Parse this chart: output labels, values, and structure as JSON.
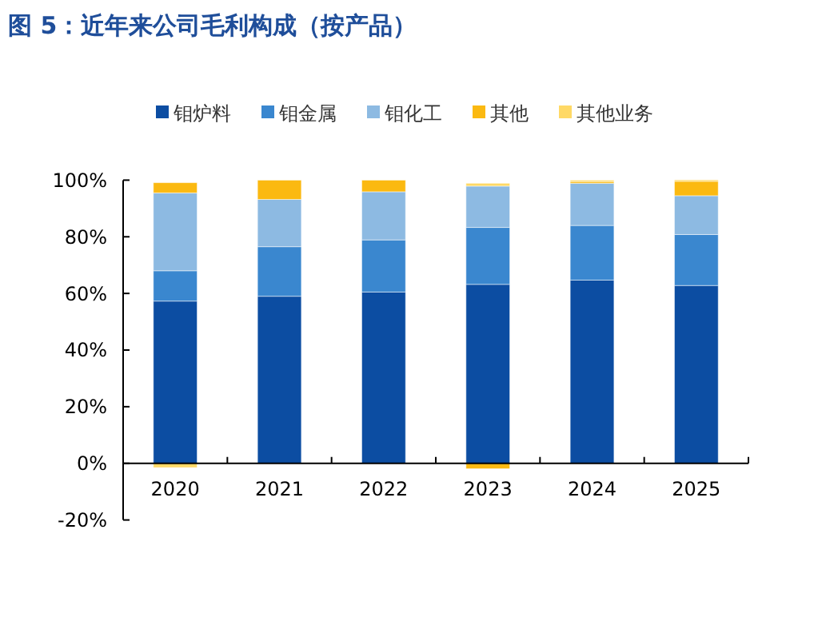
{
  "chart_data": {
    "type": "bar",
    "title": "图 5：近年来公司毛利构成（按产品）",
    "stacked": true,
    "legend": "top",
    "grid": false,
    "categories": [
      "2020",
      "2021",
      "2022",
      "2023",
      "2024",
      "2025"
    ],
    "series": [
      {
        "name": "钼炉料",
        "color": "#0c4da2",
        "values": [
          57.3,
          59.0,
          60.5,
          63.2,
          64.7,
          62.8
        ]
      },
      {
        "name": "钼金属",
        "color": "#3a87cf",
        "values": [
          10.7,
          17.5,
          18.4,
          20.1,
          19.3,
          18.0
        ]
      },
      {
        "name": "钼化工",
        "color": "#8dbae2",
        "values": [
          27.5,
          16.7,
          17.0,
          14.6,
          14.9,
          13.7
        ]
      },
      {
        "name": "其他",
        "color": "#fbb911",
        "values": [
          3.6,
          6.8,
          4.1,
          -1.9,
          0.6,
          5.1
        ]
      },
      {
        "name": "其他业务",
        "color": "#ffd966",
        "values": [
          -1.5,
          null,
          null,
          1.0,
          0.5,
          0.5
        ]
      }
    ],
    "ylim": [
      -20,
      100
    ],
    "yticks": [
      {
        "value": -20,
        "label": "-20%"
      },
      {
        "value": 0,
        "label": "0%"
      },
      {
        "value": 20,
        "label": "20%"
      },
      {
        "value": 40,
        "label": "40%"
      },
      {
        "value": 60,
        "label": "60%"
      },
      {
        "value": 80,
        "label": "80%"
      },
      {
        "value": 100,
        "label": "100%"
      }
    ]
  }
}
